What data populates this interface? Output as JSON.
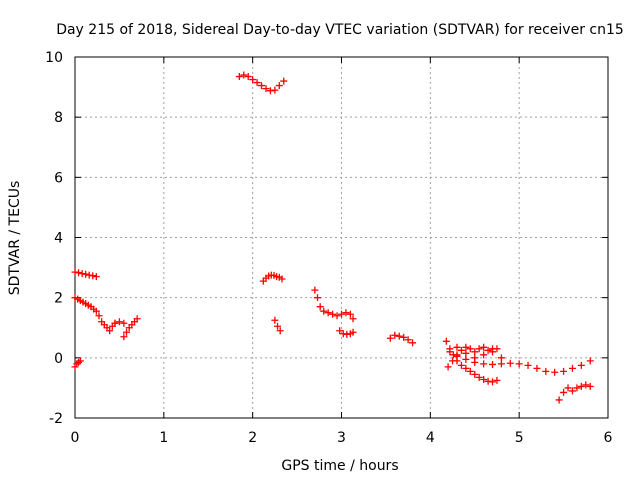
{
  "chart_data": {
    "type": "scatter",
    "title": "Day 215 of 2018, Sidereal Day-to-day VTEC variation (SDTVAR) for receiver cn15",
    "xlabel": "GPS time / hours",
    "ylabel": "SDTVAR / TECUs",
    "xlim": [
      0,
      6
    ],
    "ylim": [
      -2,
      10
    ],
    "xticks": [
      0,
      1,
      2,
      3,
      4,
      5,
      6
    ],
    "yticks": [
      -2,
      0,
      2,
      4,
      6,
      8,
      10
    ],
    "xtick_labels": [
      "0",
      "1",
      "2",
      "3",
      "4",
      "5",
      "6"
    ],
    "ytick_labels": [
      "-2",
      "0",
      "2",
      "4",
      "6",
      "8",
      "10"
    ],
    "grid": true,
    "marker": "+",
    "color": "#ff0000",
    "series": [
      {
        "name": "seg1",
        "x": [
          0.0,
          0.02,
          0.04,
          0.06
        ],
        "y": [
          -0.3,
          -0.2,
          -0.15,
          -0.1
        ]
      },
      {
        "name": "seg2",
        "x": [
          0.0,
          0.04,
          0.08,
          0.12,
          0.16,
          0.2,
          0.24
        ],
        "y": [
          2.85,
          2.83,
          2.8,
          2.78,
          2.75,
          2.73,
          2.7
        ]
      },
      {
        "name": "seg3",
        "x": [
          0.0,
          0.03,
          0.06,
          0.09,
          0.12,
          0.15,
          0.18,
          0.21,
          0.24,
          0.27,
          0.3,
          0.33,
          0.36,
          0.39,
          0.42,
          0.45
        ],
        "y": [
          2.0,
          1.95,
          1.9,
          1.85,
          1.8,
          1.75,
          1.7,
          1.62,
          1.55,
          1.4,
          1.2,
          1.1,
          1.0,
          0.9,
          1.05,
          1.15
        ]
      },
      {
        "name": "seg4",
        "x": [
          0.45,
          0.5,
          0.55
        ],
        "y": [
          1.15,
          1.2,
          1.15
        ]
      },
      {
        "name": "seg5",
        "x": [
          0.55,
          0.58,
          0.61,
          0.64,
          0.67,
          0.7
        ],
        "y": [
          0.7,
          0.85,
          1.0,
          1.1,
          1.2,
          1.3
        ]
      },
      {
        "name": "seg6",
        "x": [
          1.85,
          1.9,
          1.95,
          2.0,
          2.05,
          2.1,
          2.15,
          2.2,
          2.25,
          2.3,
          2.35
        ],
        "y": [
          9.35,
          9.4,
          9.35,
          9.25,
          9.15,
          9.05,
          8.95,
          8.88,
          8.9,
          9.05,
          9.2
        ]
      },
      {
        "name": "seg7",
        "x": [
          2.12,
          2.15,
          2.18,
          2.21,
          2.24,
          2.27,
          2.3,
          2.33
        ],
        "y": [
          2.55,
          2.65,
          2.72,
          2.75,
          2.74,
          2.7,
          2.68,
          2.62
        ]
      },
      {
        "name": "seg8",
        "x": [
          2.25,
          2.28,
          2.31
        ],
        "y": [
          1.25,
          1.05,
          0.9
        ]
      },
      {
        "name": "seg9",
        "x": [
          2.7,
          2.73,
          2.76,
          2.8,
          2.85,
          2.9,
          2.95,
          3.0,
          3.05,
          3.1,
          3.13
        ],
        "y": [
          2.25,
          2.0,
          1.7,
          1.55,
          1.5,
          1.45,
          1.4,
          1.45,
          1.5,
          1.45,
          1.3
        ]
      },
      {
        "name": "seg10",
        "x": [
          2.98,
          3.02,
          3.06,
          3.1,
          3.13
        ],
        "y": [
          0.9,
          0.8,
          0.78,
          0.8,
          0.85
        ]
      },
      {
        "name": "seg11",
        "x": [
          3.55,
          3.6,
          3.65,
          3.7,
          3.75,
          3.8
        ],
        "y": [
          0.65,
          0.75,
          0.72,
          0.68,
          0.6,
          0.5
        ]
      },
      {
        "name": "seg12",
        "x": [
          4.18,
          4.22,
          4.26,
          4.3,
          4.35,
          4.4,
          4.45,
          4.5,
          4.55,
          4.6,
          4.65,
          4.7,
          4.75
        ],
        "y": [
          0.55,
          0.3,
          0.1,
          -0.1,
          -0.25,
          -0.35,
          -0.45,
          -0.55,
          -0.65,
          -0.72,
          -0.78,
          -0.8,
          -0.75
        ]
      },
      {
        "name": "seg13",
        "x": [
          4.2,
          4.25,
          4.3,
          4.35,
          4.4,
          4.45,
          4.5,
          4.55,
          4.6,
          4.65,
          4.7,
          4.75
        ],
        "y": [
          -0.3,
          -0.1,
          0.1,
          0.25,
          0.35,
          0.3,
          0.2,
          0.3,
          0.35,
          0.25,
          0.2,
          0.3
        ]
      },
      {
        "name": "seg14",
        "x": [
          4.22,
          4.3,
          4.4,
          4.5,
          4.6,
          4.7,
          4.8,
          4.9,
          5.0,
          5.1,
          5.2,
          5.3,
          5.4,
          5.5,
          5.6,
          5.7,
          5.8
        ],
        "y": [
          0.2,
          0.05,
          -0.05,
          -0.15,
          -0.2,
          -0.22,
          -0.2,
          -0.18,
          -0.2,
          -0.25,
          -0.35,
          -0.45,
          -0.48,
          -0.45,
          -0.35,
          -0.25,
          -0.1
        ]
      },
      {
        "name": "seg15",
        "x": [
          4.3,
          4.4,
          4.5,
          4.6,
          4.7,
          4.8
        ],
        "y": [
          0.35,
          0.15,
          0.0,
          0.1,
          0.3,
          0.0
        ]
      },
      {
        "name": "seg16",
        "x": [
          5.45,
          5.5,
          5.55,
          5.6,
          5.65,
          5.7,
          5.75,
          5.8
        ],
        "y": [
          -1.4,
          -1.15,
          -1.0,
          -1.1,
          -1.0,
          -0.95,
          -0.9,
          -0.95
        ]
      }
    ]
  }
}
